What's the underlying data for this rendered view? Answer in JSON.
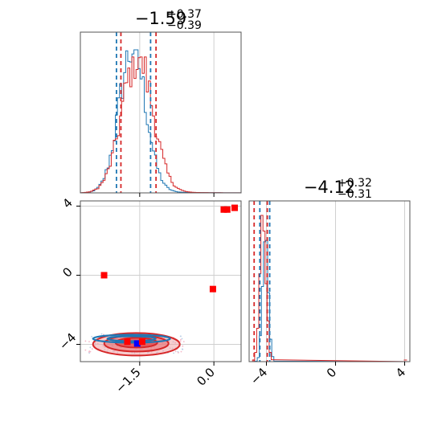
{
  "chart_data": {
    "type": "corner",
    "series": [
      {
        "name": "",
        "color": "#1f77b4"
      },
      {
        "name": "",
        "color": "#d62728"
      }
    ],
    "parameters": [
      {
        "title": {
          "median": "−1.59",
          "plus": "+0.37",
          "minus": "−0.39"
        },
        "range": [
          -2.7,
          0.55
        ],
        "ticks": [
          "−1.5",
          "0.0"
        ],
        "tick_values": [
          -1.5,
          0.0
        ],
        "quantiles": {
          "blue": [
            -1.97,
            -1.28
          ],
          "red": [
            -1.88,
            -1.17
          ]
        }
      },
      {
        "title": {
          "median": "−4.12",
          "plus": "+0.32",
          "minus": "−0.31"
        },
        "range": [
          -5.0,
          4.3
        ],
        "ticks": [
          "−4",
          "0",
          "4"
        ],
        "tick_values": [
          -4,
          0,
          4
        ],
        "quantiles": {
          "blue": [
            -4.38,
            -3.81
          ],
          "red": [
            -4.71,
            -3.95
          ]
        }
      }
    ],
    "hist1d": {
      "blue_center": -1.65,
      "blue_sigma": 0.27,
      "red_center": -1.55,
      "red_sigma": 0.31
    },
    "hist2d_outliers": {
      "red": [
        [
          0.2,
          3.8
        ],
        [
          0.27,
          3.8
        ],
        [
          0.42,
          3.9
        ],
        [
          -2.22,
          0.0
        ],
        [
          -0.02,
          -0.8
        ]
      ],
      "blue": [
        [
          -1.55,
          -3.95
        ]
      ]
    },
    "contour_center": [
      -1.6,
      -3.95
    ],
    "grid": true,
    "legend": "none"
  }
}
